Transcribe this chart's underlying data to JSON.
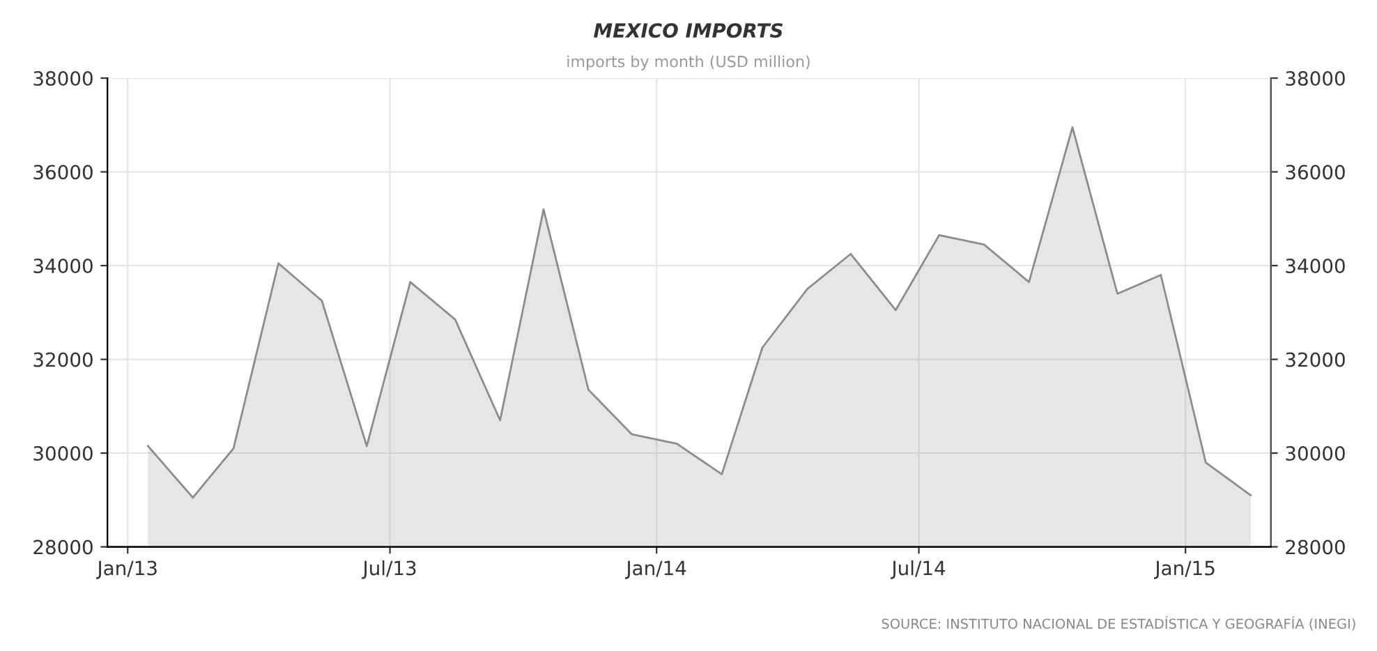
{
  "chart_data": {
    "type": "area",
    "title": "MEXICO IMPORTS",
    "subtitle": "imports by month (USD million)",
    "x": [
      "2013-01-15",
      "2013-02-15",
      "2013-03-15",
      "2013-04-15",
      "2013-05-15",
      "2013-06-15",
      "2013-07-15",
      "2013-08-15",
      "2013-09-15",
      "2013-10-15",
      "2013-11-15",
      "2013-12-15",
      "2014-01-15",
      "2014-02-15",
      "2014-03-15",
      "2014-04-15",
      "2014-05-15",
      "2014-06-15",
      "2014-07-15",
      "2014-08-15",
      "2014-09-15",
      "2014-10-15",
      "2014-11-15",
      "2014-12-15",
      "2015-01-15",
      "2015-02-15"
    ],
    "series": [
      {
        "color": "#8c8c8c",
        "values": [
          30150,
          29050,
          30100,
          34050,
          33250,
          30150,
          33650,
          32850,
          30700,
          35200,
          31350,
          30400,
          30200,
          29550,
          32250,
          33500,
          34250,
          33050,
          34650,
          34450,
          33650,
          36950,
          33400,
          33800,
          29800,
          29100
        ]
      }
    ],
    "xlim": [
      "2012-12-18",
      "2015-03-01"
    ],
    "xticks": [
      {
        "value": "2013-01-01",
        "label": "Jan/13"
      },
      {
        "value": "2013-07-01",
        "label": "Jul/13"
      },
      {
        "value": "2014-01-01",
        "label": "Jan/14"
      },
      {
        "value": "2014-07-01",
        "label": "Jul/14"
      },
      {
        "value": "2015-01-01",
        "label": "Jan/15"
      }
    ],
    "ylim": [
      28000,
      38000
    ],
    "yticks": [
      28000,
      30000,
      32000,
      34000,
      36000,
      38000
    ],
    "y2lim": [
      28000,
      38000
    ],
    "y2ticks": [
      28000,
      30000,
      32000,
      34000,
      36000,
      38000
    ],
    "grid": true,
    "line_style": "solid",
    "marker": "none",
    "annotations": [
      "SOURCE: INSTITUTO NACIONAL DE ESTADÍSTICA Y GEOGRAFÍA (INEGI)"
    ]
  }
}
